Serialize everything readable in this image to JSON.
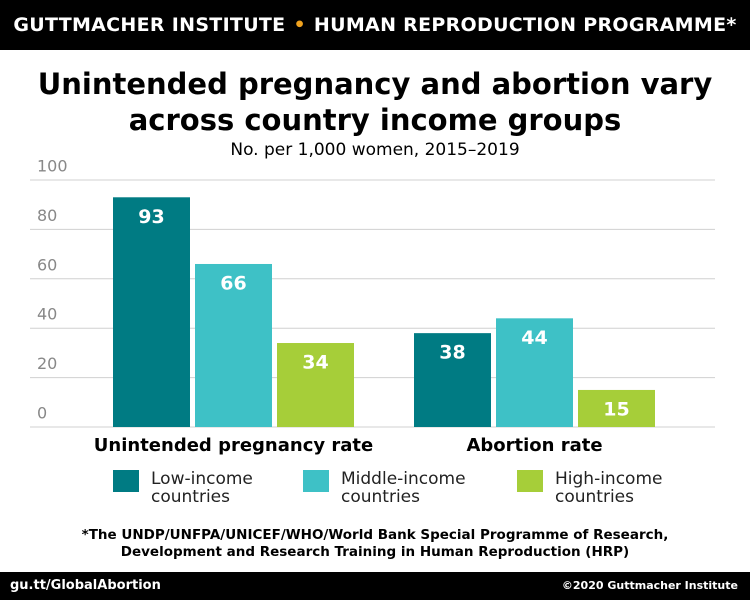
{
  "header": {
    "left": "GUTTMACHER INSTITUTE",
    "separator": "•",
    "right": "HUMAN REPRODUCTION PROGRAMME*"
  },
  "chart_data": {
    "type": "bar",
    "title": [
      "Unintended pregnancy and abortion vary",
      "across country income groups"
    ],
    "subtitle": "No. per 1,000 women, 2015–2019",
    "categories": [
      "Unintended pregnancy rate",
      "Abortion rate"
    ],
    "series": [
      {
        "name": "Low-income countries",
        "color": "#007b83",
        "values": [
          93,
          38
        ]
      },
      {
        "name": "Middle-income countries",
        "color": "#3ec1c6",
        "values": [
          66,
          44
        ]
      },
      {
        "name": "High-income countries",
        "color": "#a6ce39",
        "values": [
          34,
          15
        ]
      }
    ],
    "ylim": [
      0,
      100
    ],
    "yticks": [
      0,
      20,
      40,
      60,
      80,
      100
    ],
    "grid": true
  },
  "footnote": [
    "*The UNDP/UNFPA/UNICEF/WHO/World Bank Special Programme of Research,",
    "Development and Research Training in Human Reproduction (HRP)"
  ],
  "footer": {
    "left": "gu.tt/GlobalAbortion",
    "right": "©2020 Guttmacher Institute"
  }
}
